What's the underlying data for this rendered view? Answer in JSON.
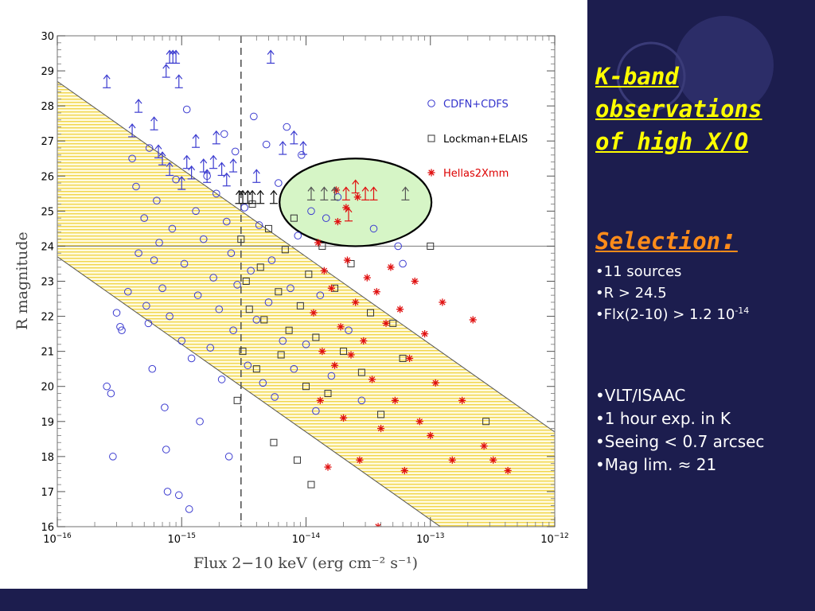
{
  "colors": {
    "slide_bg": "#1c1d4e",
    "heading": "#ffff00",
    "selection_heading": "#ff8c1a",
    "cdfn": "#4444dd",
    "lockman": "#444444",
    "hellas": "#ee1111",
    "band_fill": "#fff4a8",
    "ellipse_fill": "#d6f5c6"
  },
  "side": {
    "heading_lines": [
      "K-band ",
      "observations",
      "of high X/O"
    ],
    "selection_title": "Selection",
    "selection_colon": ":",
    "selection_bullets": [
      "•11 sources",
      "•R > 24.5"
    ],
    "flux_bullet_prefix": "•Flx(2-10) > 1.2 10",
    "flux_bullet_exp": "-14",
    "observing_bullets": [
      "•VLT/ISAAC",
      "•1 hour exp. in K",
      "•Seeing < 0.7 arcsec",
      "•Mag lim. ≈ 21"
    ]
  },
  "chart_data": {
    "type": "scatter",
    "x_scale": "log",
    "xlabel": "Flux 2−10 keV (erg cm⁻² s⁻¹)",
    "ylabel": "R magnitude",
    "xlim": [
      1e-16,
      1e-12
    ],
    "ylim": [
      16,
      30
    ],
    "x_ticks": [
      {
        "value": 1e-16,
        "base": "10",
        "exp": "−16"
      },
      {
        "value": 1e-15,
        "base": "10",
        "exp": "−15"
      },
      {
        "value": 1e-14,
        "base": "10",
        "exp": "−14"
      },
      {
        "value": 1e-13,
        "base": "10",
        "exp": "−13"
      },
      {
        "value": 1e-12,
        "base": "10",
        "exp": "−12"
      }
    ],
    "y_ticks": [
      "16",
      "17",
      "18",
      "19",
      "20",
      "21",
      "22",
      "23",
      "24",
      "25",
      "26",
      "27",
      "28",
      "29",
      "30"
    ],
    "legend": [
      {
        "label": "CDFN+CDFS",
        "marker": "circle",
        "color": "#3333cc"
      },
      {
        "label": "Lockman+ELAIS",
        "marker": "square",
        "color": "#000000"
      },
      {
        "label": "Hellas2Xmm",
        "marker": "asterisk",
        "color": "#dd0000"
      }
    ],
    "vertical_line_flux": 3e-15,
    "horizontal_line_mag": 24,
    "band_lines": [
      {
        "flux": [
          1e-16,
          1e-12
        ],
        "mag": [
          28.7,
          18.7
        ]
      },
      {
        "flux": [
          1e-16,
          1e-12
        ],
        "mag": [
          23.7,
          13.7
        ]
      }
    ],
    "selection_region": {
      "center_flux": 2.5e-14,
      "center_mag": 25.25,
      "flux_range": [
        6e-15,
        1e-13
      ],
      "mag_range": [
        24.0,
        26.5
      ]
    },
    "series": [
      {
        "name": "CDFN+CDFS",
        "marker": "circle",
        "points": [
          [
            2.5e-16,
            20.0
          ],
          [
            2.7e-16,
            19.8
          ],
          [
            2.8e-16,
            18.0
          ],
          [
            3e-16,
            22.1
          ],
          [
            3.2e-16,
            21.7
          ],
          [
            3.3e-16,
            21.6
          ],
          [
            3.7e-16,
            22.7
          ],
          [
            4e-16,
            26.5
          ],
          [
            4.3e-16,
            25.7
          ],
          [
            4.5e-16,
            23.8
          ],
          [
            5e-16,
            24.8
          ],
          [
            5.2e-16,
            22.3
          ],
          [
            5.4e-16,
            21.8
          ],
          [
            5.5e-16,
            26.8
          ],
          [
            5.8e-16,
            20.5
          ],
          [
            6e-16,
            23.6
          ],
          [
            6.3e-16,
            25.3
          ],
          [
            6.6e-16,
            24.1
          ],
          [
            7e-16,
            22.8
          ],
          [
            7.3e-16,
            19.4
          ],
          [
            7.5e-16,
            18.2
          ],
          [
            7.7e-16,
            17.0
          ],
          [
            8e-16,
            22.0
          ],
          [
            8.4e-16,
            24.5
          ],
          [
            9e-16,
            25.9
          ],
          [
            9.5e-16,
            16.9
          ],
          [
            1e-15,
            21.3
          ],
          [
            1.05e-15,
            23.5
          ],
          [
            1.1e-15,
            27.9
          ],
          [
            1.15e-15,
            16.5
          ],
          [
            1.2e-15,
            20.8
          ],
          [
            1.3e-15,
            25.0
          ],
          [
            1.35e-15,
            22.6
          ],
          [
            1.4e-15,
            19.0
          ],
          [
            1.5e-15,
            24.2
          ],
          [
            1.6e-15,
            26.0
          ],
          [
            1.7e-15,
            21.1
          ],
          [
            1.8e-15,
            23.1
          ],
          [
            1.9e-15,
            25.5
          ],
          [
            2e-15,
            22.2
          ],
          [
            2.1e-15,
            20.2
          ],
          [
            2.2e-15,
            27.2
          ],
          [
            2.3e-15,
            24.7
          ],
          [
            2.4e-15,
            18.0
          ],
          [
            2.5e-15,
            23.8
          ],
          [
            2.6e-15,
            21.6
          ],
          [
            2.7e-15,
            26.7
          ],
          [
            2.8e-15,
            22.9
          ],
          [
            3.2e-15,
            25.1
          ],
          [
            3.4e-15,
            20.6
          ],
          [
            3.6e-15,
            23.3
          ],
          [
            3.8e-15,
            27.7
          ],
          [
            4e-15,
            21.9
          ],
          [
            4.2e-15,
            24.6
          ],
          [
            4.5e-15,
            20.1
          ],
          [
            4.8e-15,
            26.9
          ],
          [
            5e-15,
            22.4
          ],
          [
            5.3e-15,
            23.6
          ],
          [
            5.6e-15,
            19.7
          ],
          [
            6e-15,
            25.8
          ],
          [
            6.5e-15,
            21.3
          ],
          [
            7e-15,
            27.4
          ],
          [
            7.5e-15,
            22.8
          ],
          [
            8e-15,
            20.5
          ],
          [
            8.6e-15,
            24.3
          ],
          [
            9.2e-15,
            26.6
          ],
          [
            1e-14,
            21.2
          ],
          [
            1.1e-14,
            25.0
          ],
          [
            1.2e-14,
            19.3
          ],
          [
            1.3e-14,
            22.6
          ],
          [
            1.45e-14,
            24.8
          ],
          [
            1.6e-14,
            20.3
          ],
          [
            1.8e-14,
            25.4
          ],
          [
            2.2e-14,
            21.6
          ],
          [
            2.8e-14,
            19.6
          ],
          [
            3.5e-14,
            24.5
          ],
          [
            5.5e-14,
            24.0
          ],
          [
            6e-14,
            23.5
          ]
        ]
      },
      {
        "name": "Lockman+ELAIS",
        "marker": "square",
        "points": [
          [
            2.8e-15,
            19.6
          ],
          [
            3e-15,
            24.2
          ],
          [
            3.1e-15,
            21.0
          ],
          [
            3.3e-15,
            23.0
          ],
          [
            3.5e-15,
            22.2
          ],
          [
            3.7e-15,
            25.2
          ],
          [
            4e-15,
            20.5
          ],
          [
            4.3e-15,
            23.4
          ],
          [
            4.6e-15,
            21.9
          ],
          [
            5e-15,
            24.5
          ],
          [
            5.5e-15,
            18.4
          ],
          [
            6e-15,
            22.7
          ],
          [
            6.3e-15,
            20.9
          ],
          [
            6.8e-15,
            23.9
          ],
          [
            7.3e-15,
            21.6
          ],
          [
            8e-15,
            24.8
          ],
          [
            8.5e-15,
            17.9
          ],
          [
            9e-15,
            22.3
          ],
          [
            1e-14,
            20.0
          ],
          [
            1.05e-14,
            23.2
          ],
          [
            1.1e-14,
            17.2
          ],
          [
            1.2e-14,
            21.4
          ],
          [
            1.35e-14,
            24.0
          ],
          [
            1.5e-14,
            19.8
          ],
          [
            1.7e-14,
            22.8
          ],
          [
            2e-14,
            21.0
          ],
          [
            2.3e-14,
            23.5
          ],
          [
            2.8e-14,
            20.4
          ],
          [
            3.3e-14,
            22.1
          ],
          [
            4e-14,
            19.2
          ],
          [
            5e-14,
            21.8
          ],
          [
            6e-14,
            20.8
          ],
          [
            2.8e-13,
            19.0
          ],
          [
            1e-13,
            24.0
          ]
        ]
      },
      {
        "name": "Hellas2Xmm",
        "marker": "asterisk",
        "points": [
          [
            1.15e-14,
            22.1
          ],
          [
            1.25e-14,
            24.1
          ],
          [
            1.3e-14,
            19.6
          ],
          [
            1.35e-14,
            21.0
          ],
          [
            1.4e-14,
            23.3
          ],
          [
            1.5e-14,
            17.7
          ],
          [
            1.6e-14,
            22.8
          ],
          [
            1.7e-14,
            20.6
          ],
          [
            1.8e-14,
            24.7
          ],
          [
            1.9e-14,
            21.7
          ],
          [
            2e-14,
            19.1
          ],
          [
            2.15e-14,
            23.6
          ],
          [
            2.3e-14,
            20.9
          ],
          [
            2.5e-14,
            22.4
          ],
          [
            2.7e-14,
            17.9
          ],
          [
            2.9e-14,
            21.3
          ],
          [
            3.1e-14,
            23.1
          ],
          [
            3.4e-14,
            20.2
          ],
          [
            3.7e-14,
            22.7
          ],
          [
            4e-14,
            18.8
          ],
          [
            4.4e-14,
            21.8
          ],
          [
            4.8e-14,
            23.4
          ],
          [
            5.2e-14,
            19.6
          ],
          [
            5.7e-14,
            22.2
          ],
          [
            6.2e-14,
            17.6
          ],
          [
            6.8e-14,
            20.8
          ],
          [
            7.5e-14,
            23.0
          ],
          [
            8.2e-14,
            19.0
          ],
          [
            9e-14,
            21.5
          ],
          [
            1e-13,
            18.6
          ],
          [
            1.1e-13,
            20.1
          ],
          [
            1.25e-13,
            22.4
          ],
          [
            1.5e-13,
            17.9
          ],
          [
            1.8e-13,
            19.6
          ],
          [
            2.2e-13,
            21.9
          ],
          [
            2.7e-13,
            18.3
          ],
          [
            3.2e-13,
            17.9
          ],
          [
            4.2e-13,
            17.6
          ],
          [
            3.8e-14,
            16.0
          ],
          [
            2.6e-14,
            25.4
          ],
          [
            2.1e-14,
            25.1
          ],
          [
            1.75e-14,
            25.6
          ]
        ]
      },
      {
        "name": "R lower limits",
        "marker": "arrow",
        "points": [
          [
            2.5e-16,
            28.7
          ],
          [
            4e-16,
            27.3
          ],
          [
            4.5e-16,
            28.0
          ],
          [
            6e-16,
            27.5
          ],
          [
            7.5e-16,
            29.0
          ],
          [
            8e-16,
            29.4
          ],
          [
            8.5e-16,
            29.4
          ],
          [
            9e-16,
            29.4
          ],
          [
            9.5e-16,
            28.7
          ],
          [
            6.5e-16,
            26.7
          ],
          [
            7e-16,
            26.5
          ],
          [
            8e-16,
            26.2
          ],
          [
            1e-15,
            25.8
          ],
          [
            1.1e-15,
            26.4
          ],
          [
            1.2e-15,
            26.1
          ],
          [
            1.3e-15,
            27.0
          ],
          [
            1.5e-15,
            26.3
          ],
          [
            1.6e-15,
            26.0
          ],
          [
            1.8e-15,
            26.4
          ],
          [
            1.9e-15,
            27.1
          ],
          [
            2.1e-15,
            26.2
          ],
          [
            2.3e-15,
            25.9
          ],
          [
            2.6e-15,
            26.3
          ],
          [
            2.9e-15,
            25.4
          ],
          [
            3.1e-15,
            25.4
          ],
          [
            3.4e-15,
            25.4
          ],
          [
            3.7e-15,
            25.4
          ],
          [
            4e-15,
            26.0
          ],
          [
            4.3e-15,
            25.4
          ],
          [
            5.2e-15,
            29.4
          ],
          [
            5.5e-15,
            25.4
          ],
          [
            6.5e-15,
            26.8
          ],
          [
            8e-15,
            27.1
          ],
          [
            9.5e-15,
            26.8
          ],
          [
            1.1e-14,
            25.5
          ],
          [
            1.4e-14,
            25.5
          ],
          [
            1.7e-14,
            25.5
          ],
          [
            2.1e-14,
            25.5
          ],
          [
            3.5e-14,
            25.5
          ],
          [
            6.3e-14,
            25.5
          ],
          [
            2.5e-14,
            25.7
          ],
          [
            3e-14,
            25.5
          ],
          [
            2.2e-14,
            24.9
          ]
        ]
      }
    ]
  }
}
